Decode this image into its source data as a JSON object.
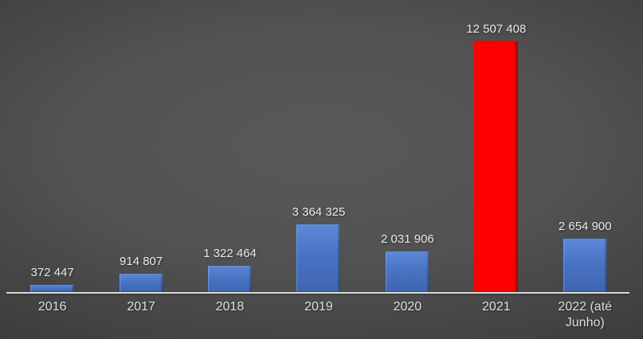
{
  "chart_data": {
    "type": "bar",
    "categories": [
      "2016",
      "2017",
      "2018",
      "2019",
      "2020",
      "2021",
      "2022 (até Junho)"
    ],
    "values": [
      372447,
      914807,
      1322464,
      3364325,
      2031906,
      12507408,
      2654900
    ],
    "value_labels": [
      "372 447",
      "914 807",
      "1 322 464",
      "3 364 325",
      "2 031 906",
      "12 507 408",
      "2 654 900"
    ],
    "bar_colors": [
      "blue",
      "blue",
      "blue",
      "blue",
      "blue",
      "red",
      "blue"
    ],
    "title": "",
    "xlabel": "",
    "ylabel": "",
    "ylim": [
      0,
      12507408
    ],
    "grid": false,
    "legend": false,
    "colors": {
      "bar_blue_top": "#5d89d9",
      "bar_blue_bottom": "#3e65b0",
      "bar_red": "#fe0000",
      "axis_line": "#d9d9d9",
      "label_text": "#e9e9e9",
      "tick_text": "#dedede",
      "background_center": "#595959",
      "background_edge": "#272727"
    }
  }
}
